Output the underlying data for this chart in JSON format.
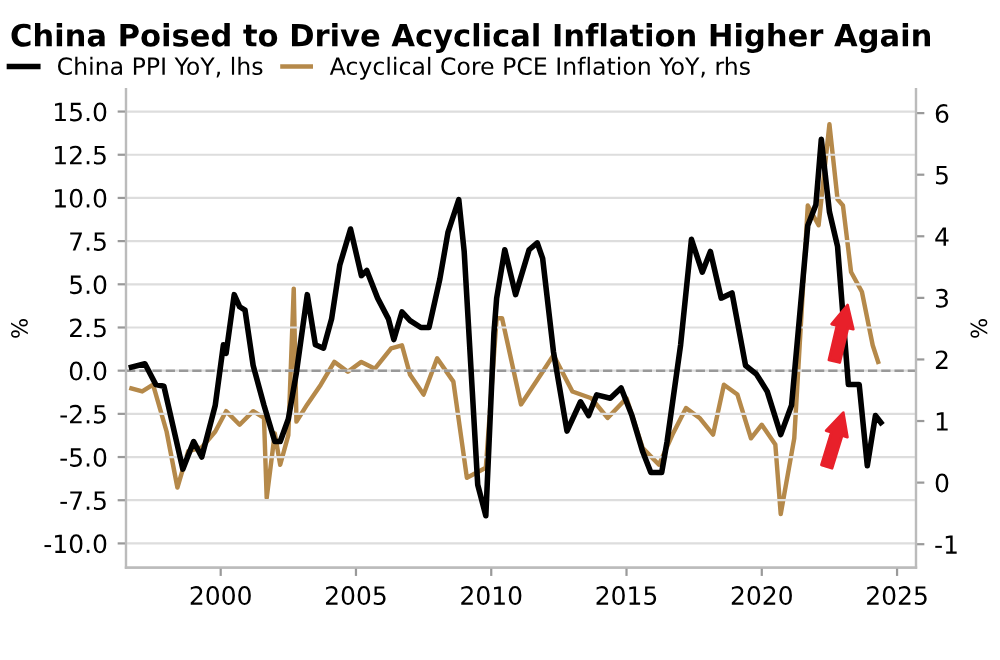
{
  "chart_data": {
    "type": "line",
    "title": "China Poised to Drive Acyclical Inflation Higher Again",
    "ylabel": "%",
    "y2label": "%",
    "xlim": [
      1996.5,
      2025.7
    ],
    "xticks": [
      2000,
      2005,
      2010,
      2015,
      2020,
      2025
    ],
    "ylim": [
      -11.4,
      16.3
    ],
    "yticks": [
      {
        "value": -10,
        "label": "-10.0"
      },
      {
        "value": -7.5,
        "label": "-7.5"
      },
      {
        "value": -5,
        "label": "-5.0"
      },
      {
        "value": -2.5,
        "label": "-2.5"
      },
      {
        "value": 0,
        "label": "0.0"
      },
      {
        "value": 2.5,
        "label": "2.5"
      },
      {
        "value": 5,
        "label": "5.0"
      },
      {
        "value": 7.5,
        "label": "7.5"
      },
      {
        "value": 10,
        "label": "10.0"
      },
      {
        "value": 12.5,
        "label": "12.5"
      },
      {
        "value": 15,
        "label": "15.0"
      }
    ],
    "y2lim": [
      -1.38,
      6.39
    ],
    "y2ticks": [
      -1,
      0,
      1,
      2,
      3,
      4,
      5,
      6
    ],
    "grid": "y",
    "legend": "top left",
    "ref_lines": [
      {
        "axis": "y",
        "value": 0,
        "color": "#999999",
        "line_style": "dashed"
      }
    ],
    "series": [
      {
        "name": "China PPI YoY, lhs",
        "color": "#000000",
        "x": [
          1996.7,
          1997.2,
          1997.6,
          1997.9,
          1998.6,
          1999.0,
          1999.3,
          1999.8,
          2000.1,
          2000.2,
          2000.5,
          2000.7,
          2000.9,
          2001.2,
          2001.6,
          2002.0,
          2002.2,
          2002.5,
          2002.8,
          2003.2,
          2003.5,
          2003.8,
          2004.1,
          2004.4,
          2004.8,
          2005.2,
          2005.4,
          2005.8,
          2006.2,
          2006.4,
          2006.7,
          2007.0,
          2007.4,
          2007.7,
          2008.1,
          2008.4,
          2008.8,
          2009.0,
          2009.3,
          2009.5,
          2009.8,
          2010.1,
          2010.2,
          2010.5,
          2010.9,
          2011.4,
          2011.7,
          2011.9,
          2012.3,
          2012.8,
          2013.3,
          2013.6,
          2013.9,
          2014.4,
          2014.8,
          2015.2,
          2015.6,
          2015.9,
          2016.3,
          2016.5,
          2017.0,
          2017.4,
          2017.8,
          2018.1,
          2018.5,
          2018.9,
          2019.4,
          2019.8,
          2020.2,
          2020.7,
          2021.1,
          2021.7,
          2022.0,
          2022.2,
          2022.5,
          2022.8,
          2023.2,
          2023.6,
          2023.9,
          2024.2,
          2024.4
        ],
        "values": [
          0.2,
          0.4,
          -0.8,
          -0.9,
          -5.7,
          -4.1,
          -5.0,
          -2.0,
          1.5,
          1.0,
          4.4,
          3.7,
          3.5,
          0.3,
          -2.0,
          -4.1,
          -4.1,
          -2.8,
          -0.1,
          4.4,
          1.5,
          1.3,
          3.0,
          6.1,
          8.2,
          5.5,
          5.8,
          4.2,
          3.0,
          1.8,
          3.4,
          2.9,
          2.5,
          2.5,
          5.3,
          8.0,
          9.9,
          6.9,
          -1.2,
          -6.6,
          -8.4,
          2.2,
          4.2,
          7.0,
          4.4,
          7.0,
          7.4,
          6.5,
          1.1,
          -3.5,
          -1.8,
          -2.6,
          -1.4,
          -1.6,
          -1.0,
          -2.6,
          -4.7,
          -5.9,
          -5.9,
          -4.1,
          1.5,
          7.6,
          5.7,
          6.9,
          4.2,
          4.5,
          0.3,
          -0.2,
          -1.2,
          -3.7,
          -2.0,
          8.4,
          9.6,
          13.4,
          9.2,
          7.2,
          -0.8,
          -0.8,
          -5.5,
          -2.6,
          -3.0
        ]
      },
      {
        "name": "Acyclical Core PCE Inflation YoY, rhs",
        "color": "#b5894a",
        "axis": "y2",
        "x": [
          1996.7,
          1997.1,
          1997.5,
          1998.0,
          1998.4,
          1998.8,
          1999.3,
          1999.8,
          2000.2,
          2000.7,
          2001.2,
          2001.6,
          2001.7,
          2002.0,
          2002.2,
          2002.5,
          2002.7,
          2002.8,
          2003.2,
          2003.7,
          2004.2,
          2004.7,
          2005.2,
          2005.7,
          2006.3,
          2006.7,
          2007.0,
          2007.5,
          2008.0,
          2008.6,
          2009.1,
          2009.8,
          2010.2,
          2010.4,
          2011.1,
          2011.9,
          2012.3,
          2013.0,
          2013.7,
          2014.3,
          2015.0,
          2015.6,
          2016.2,
          2016.7,
          2017.2,
          2017.7,
          2018.2,
          2018.6,
          2019.1,
          2019.6,
          2020.0,
          2020.5,
          2020.7,
          2021.2,
          2021.7,
          2022.1,
          2022.5,
          2022.8,
          2023.0,
          2023.3,
          2023.7,
          2024.1,
          2024.3
        ],
        "values": [
          1.53,
          1.48,
          1.59,
          0.83,
          -0.08,
          0.51,
          0.57,
          0.83,
          1.16,
          0.94,
          1.16,
          1.05,
          -0.25,
          0.8,
          0.29,
          0.77,
          3.15,
          0.99,
          1.27,
          1.59,
          1.96,
          1.8,
          1.96,
          1.85,
          2.18,
          2.23,
          1.75,
          1.43,
          2.02,
          1.64,
          0.08,
          0.24,
          2.67,
          2.67,
          1.27,
          1.8,
          2.07,
          1.48,
          1.37,
          1.05,
          1.37,
          0.56,
          0.29,
          0.78,
          1.21,
          1.05,
          0.78,
          1.59,
          1.43,
          0.72,
          0.94,
          0.62,
          -0.51,
          0.72,
          4.5,
          4.18,
          5.82,
          4.6,
          4.5,
          3.42,
          3.1,
          2.23,
          1.96
        ]
      }
    ]
  }
}
